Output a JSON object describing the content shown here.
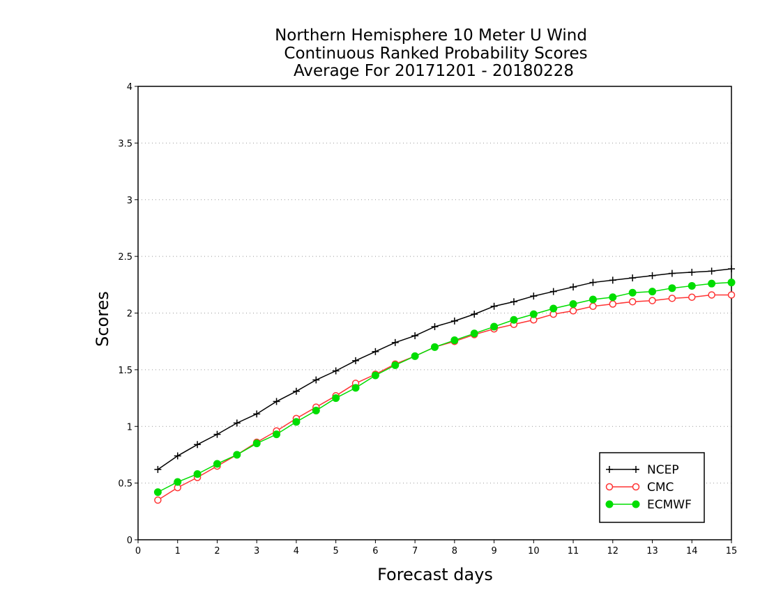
{
  "chart_data": {
    "type": "line",
    "title_lines": [
      "Northern Hemisphere 10 Meter U Wind",
      "Continuous Ranked Probability Scores",
      "Average For 20171201 - 20180228"
    ],
    "xlabel": "Forecast days",
    "ylabel": "Scores",
    "xlim": [
      0,
      15
    ],
    "ylim": [
      0,
      4
    ],
    "xticks": [
      "0",
      "1",
      "2",
      "3",
      "4",
      "5",
      "6",
      "7",
      "8",
      "9",
      "10",
      "11",
      "12",
      "13",
      "14",
      "15"
    ],
    "yticks": [
      "0",
      "0.5",
      "1",
      "1.5",
      "2",
      "2.5",
      "3",
      "3.5",
      "4"
    ],
    "grid": "horizontal dotted",
    "legend_position": "bottom-right",
    "x": [
      0.5,
      1,
      1.5,
      2,
      2.5,
      3,
      3.5,
      4,
      4.5,
      5,
      5.5,
      6,
      6.5,
      7,
      7.5,
      8,
      8.5,
      9,
      9.5,
      10,
      10.5,
      11,
      11.5,
      12,
      12.5,
      13,
      13.5,
      14,
      14.5,
      15
    ],
    "series": [
      {
        "name": "NCEP",
        "color": "#000000",
        "marker": "plus",
        "values": [
          0.62,
          0.74,
          0.84,
          0.93,
          1.03,
          1.11,
          1.22,
          1.31,
          1.41,
          1.49,
          1.58,
          1.66,
          1.74,
          1.8,
          1.88,
          1.93,
          1.99,
          2.06,
          2.1,
          2.15,
          2.19,
          2.23,
          2.27,
          2.29,
          2.31,
          2.33,
          2.35,
          2.36,
          2.37,
          2.39
        ]
      },
      {
        "name": "CMC",
        "color": "#ff3333",
        "marker": "open-circle",
        "values": [
          0.35,
          0.46,
          0.55,
          0.65,
          0.75,
          0.86,
          0.96,
          1.07,
          1.17,
          1.27,
          1.38,
          1.46,
          1.55,
          1.62,
          1.7,
          1.75,
          1.81,
          1.86,
          1.9,
          1.94,
          1.99,
          2.02,
          2.06,
          2.08,
          2.1,
          2.11,
          2.13,
          2.14,
          2.16,
          2.16
        ]
      },
      {
        "name": "ECMWF",
        "color": "#00dd00",
        "marker": "filled-circle",
        "values": [
          0.42,
          0.51,
          0.58,
          0.67,
          0.75,
          0.85,
          0.93,
          1.04,
          1.14,
          1.25,
          1.34,
          1.45,
          1.54,
          1.62,
          1.7,
          1.76,
          1.82,
          1.88,
          1.94,
          1.99,
          2.04,
          2.08,
          2.12,
          2.14,
          2.18,
          2.19,
          2.22,
          2.24,
          2.26,
          2.27
        ]
      }
    ]
  }
}
